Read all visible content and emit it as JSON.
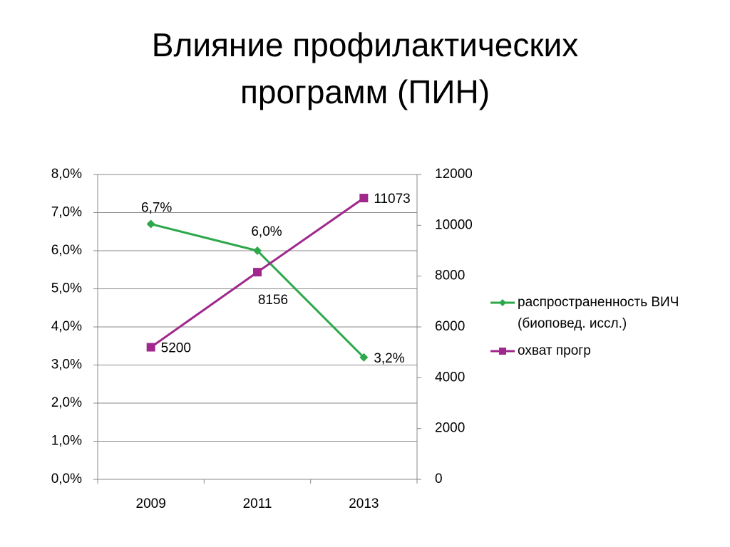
{
  "chart_data": {
    "type": "line",
    "title": "Влияние профилактических программ (ПИН)",
    "categories": [
      "2009",
      "2011",
      "2013"
    ],
    "series": [
      {
        "name": "распространенность ВИЧ (биоповед. исcл.)",
        "color": "#2ca84a",
        "marker": "diamond",
        "values": [
          6.7,
          6.0,
          3.2
        ],
        "value_labels": [
          "6,7%",
          "6,0%",
          "3,2%"
        ]
      },
      {
        "name": "охват прогр",
        "color": "#a0288c",
        "marker": "square",
        "axis": "y2",
        "values": [
          5200,
          8156,
          11073
        ]
      }
    ],
    "ylim": [
      0,
      8
    ],
    "yticks": [
      {
        "value": 0,
        "label": "0,0%"
      },
      {
        "value": 1,
        "label": "1,0%"
      },
      {
        "value": 2,
        "label": "2,0%"
      },
      {
        "value": 3,
        "label": "3,0%"
      },
      {
        "value": 4,
        "label": "4,0%"
      },
      {
        "value": 5,
        "label": "5,0%"
      },
      {
        "value": 6,
        "label": "6,0%"
      },
      {
        "value": 7,
        "label": "7,0%"
      },
      {
        "value": 8,
        "label": "8,0%"
      }
    ],
    "y2lim": [
      0,
      12000
    ],
    "y2ticks": [
      0,
      2000,
      4000,
      6000,
      8000,
      10000,
      12000
    ],
    "grid": true,
    "legend": "right"
  }
}
